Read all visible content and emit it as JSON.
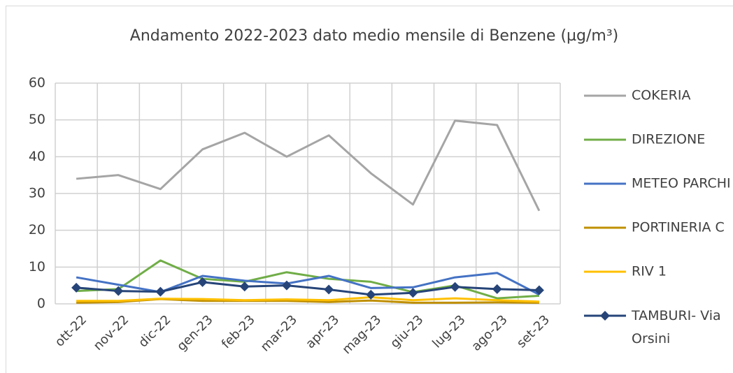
{
  "chart_data": {
    "type": "line",
    "title": "Andamento 2022-2023 dato medio mensile di Benzene (µg/m³)",
    "categories": [
      "ott-22",
      "nov-22",
      "dic-22",
      "gen-23",
      "feb-23",
      "mar-23",
      "apr-23",
      "mag-23",
      "giu-23",
      "lug-23",
      "ago-23",
      "set-23"
    ],
    "series": [
      {
        "name": "COKERIA",
        "color": "#a5a5a5",
        "values": [
          34,
          35,
          31.2,
          42,
          46.5,
          40,
          45.8,
          35.5,
          27,
          49.8,
          48.6,
          25.3
        ]
      },
      {
        "name": "DIREZIONE",
        "color": "#70ad47",
        "values": [
          3.5,
          4,
          11.8,
          6.8,
          6,
          8.6,
          6.8,
          6,
          3.2,
          5,
          1.5,
          2.2
        ]
      },
      {
        "name": "METEO PARCHI",
        "color": "#4472c4",
        "values": [
          7.2,
          5.2,
          3.2,
          7.6,
          6.3,
          5.5,
          7.6,
          4.3,
          4.5,
          7.2,
          8.4,
          2.5
        ]
      },
      {
        "name": "PORTINERIA C",
        "color": "#bf8f00",
        "values": [
          0.3,
          0.5,
          1.3,
          0.8,
          0.8,
          0.8,
          0.5,
          0.9,
          0.3,
          0.3,
          0.4,
          0.3
        ]
      },
      {
        "name": "RIV 1",
        "color": "#ffc000",
        "values": [
          0.8,
          0.8,
          1.4,
          1.3,
          1,
          1.2,
          1,
          1.8,
          1,
          1.5,
          1,
          0.6
        ]
      },
      {
        "name": "TAMBURI- Via Orsini",
        "color": "#264478",
        "marker": "diamond",
        "values": [
          4.4,
          3.5,
          3.3,
          5.9,
          4.7,
          5,
          3.9,
          2.5,
          3,
          4.6,
          4,
          3.7
        ]
      }
    ],
    "ylim": [
      0,
      60
    ],
    "yticks": [
      0,
      10,
      20,
      30,
      40,
      50,
      60
    ],
    "grid": true,
    "legend": "right"
  }
}
